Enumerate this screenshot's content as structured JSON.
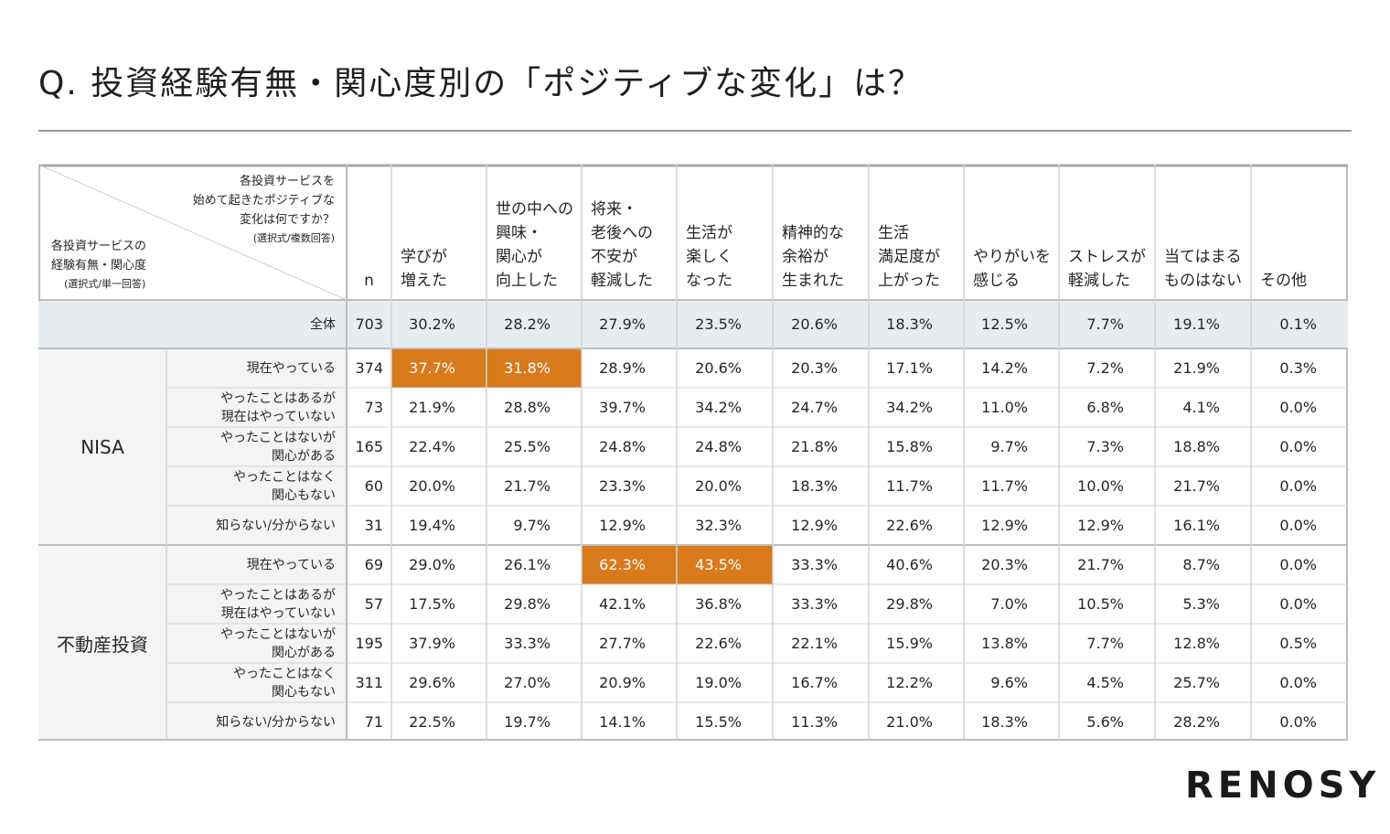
{
  "title": "Q. 投資経験有無・関心度別の「ポジティブな変化」は？",
  "logo": "RENOSY",
  "colors": {
    "highlight": "#d97a1c",
    "total_row": "#e7ecf0",
    "label_bg": "#f4f4f4"
  },
  "corner": {
    "top_lines": [
      "各投資サービスを",
      "始めて起きたポジティブな",
      "変化は何ですか？"
    ],
    "top_note": "(選択式/複数回答)",
    "bottom_lines": [
      "各投資サービスの",
      "経験有無・関心度"
    ],
    "bottom_note": "(選択式/単一回答)"
  },
  "chart_data": {
    "type": "table",
    "title": "Q. 投資経験有無・関心度別の「ポジティブな変化」は？",
    "n_header": "n",
    "columns": [
      "学びが\n増えた",
      "世の中への\n興味・\n関心が\n向上した",
      "将来・\n老後への\n不安が\n軽減した",
      "生活が\n楽しく\nなった",
      "精神的な\n余裕が\n生まれた",
      "生活\n満足度が\n上がった",
      "やりがいを\n感じる",
      "ストレスが\n軽減した",
      "当てはまる\nものはない",
      "その他"
    ],
    "total": {
      "label": "全体",
      "n": 703,
      "values": [
        "30.2%",
        "28.2%",
        "27.9%",
        "23.5%",
        "20.6%",
        "18.3%",
        "12.5%",
        "7.7%",
        "19.1%",
        "0.1%"
      ]
    },
    "groups": [
      {
        "name": "NISA",
        "rows": [
          {
            "label": "現在やっている",
            "n": 374,
            "values": [
              "37.7%",
              "31.8%",
              "28.9%",
              "20.6%",
              "20.3%",
              "17.1%",
              "14.2%",
              "7.2%",
              "21.9%",
              "0.3%"
            ],
            "highlight": [
              0,
              1
            ]
          },
          {
            "label": "やったことはあるが\n現在はやっていない",
            "n": 73,
            "values": [
              "21.9%",
              "28.8%",
              "39.7%",
              "34.2%",
              "24.7%",
              "34.2%",
              "11.0%",
              "6.8%",
              "4.1%",
              "0.0%"
            ],
            "highlight": []
          },
          {
            "label": "やったことはないが\n関心がある",
            "n": 165,
            "values": [
              "22.4%",
              "25.5%",
              "24.8%",
              "24.8%",
              "21.8%",
              "15.8%",
              "9.7%",
              "7.3%",
              "18.8%",
              "0.0%"
            ],
            "highlight": []
          },
          {
            "label": "やったことはなく\n関心もない",
            "n": 60,
            "values": [
              "20.0%",
              "21.7%",
              "23.3%",
              "20.0%",
              "18.3%",
              "11.7%",
              "11.7%",
              "10.0%",
              "21.7%",
              "0.0%"
            ],
            "highlight": []
          },
          {
            "label": "知らない/分からない",
            "n": 31,
            "values": [
              "19.4%",
              "9.7%",
              "12.9%",
              "32.3%",
              "12.9%",
              "22.6%",
              "12.9%",
              "12.9%",
              "16.1%",
              "0.0%"
            ],
            "highlight": []
          }
        ]
      },
      {
        "name": "不動産投資",
        "rows": [
          {
            "label": "現在やっている",
            "n": 69,
            "values": [
              "29.0%",
              "26.1%",
              "62.3%",
              "43.5%",
              "33.3%",
              "40.6%",
              "20.3%",
              "21.7%",
              "8.7%",
              "0.0%"
            ],
            "highlight": [
              2,
              3
            ]
          },
          {
            "label": "やったことはあるが\n現在はやっていない",
            "n": 57,
            "values": [
              "17.5%",
              "29.8%",
              "42.1%",
              "36.8%",
              "33.3%",
              "29.8%",
              "7.0%",
              "10.5%",
              "5.3%",
              "0.0%"
            ],
            "highlight": []
          },
          {
            "label": "やったことはないが\n関心がある",
            "n": 195,
            "values": [
              "37.9%",
              "33.3%",
              "27.7%",
              "22.6%",
              "22.1%",
              "15.9%",
              "13.8%",
              "7.7%",
              "12.8%",
              "0.5%"
            ],
            "highlight": []
          },
          {
            "label": "やったことはなく\n関心もない",
            "n": 311,
            "values": [
              "29.6%",
              "27.0%",
              "20.9%",
              "19.0%",
              "16.7%",
              "12.2%",
              "9.6%",
              "4.5%",
              "25.7%",
              "0.0%"
            ],
            "highlight": []
          },
          {
            "label": "知らない/分からない",
            "n": 71,
            "values": [
              "22.5%",
              "19.7%",
              "14.1%",
              "15.5%",
              "11.3%",
              "21.0%",
              "18.3%",
              "5.6%",
              "28.2%",
              "0.0%"
            ],
            "highlight": []
          }
        ]
      }
    ]
  }
}
